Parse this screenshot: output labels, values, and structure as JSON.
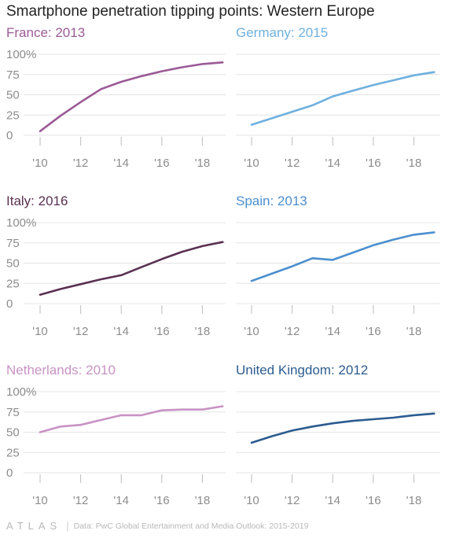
{
  "title": "Smartphone penetration tipping points: Western Europe",
  "footer": {
    "logo": "ATLAS",
    "source": "Data: PwC Global Entertainment and Media Outlook: 2015-2019"
  },
  "y_ticks": [
    "100%",
    "75",
    "50",
    "25",
    "0"
  ],
  "x_ticks": [
    "'10",
    "'12",
    "'14",
    "'16",
    "'18"
  ],
  "chart_data": [
    {
      "type": "line",
      "title": "France: 2013",
      "color": "#9b5a96",
      "x": [
        2010,
        2011,
        2012,
        2013,
        2014,
        2015,
        2016,
        2017,
        2018,
        2019
      ],
      "values": [
        5,
        24,
        41,
        57,
        66,
        73,
        79,
        84,
        88,
        90
      ],
      "ylim": [
        0,
        100
      ]
    },
    {
      "type": "line",
      "title": "Germany: 2015",
      "color": "#6fb0de",
      "x": [
        2010,
        2011,
        2012,
        2013,
        2014,
        2015,
        2016,
        2017,
        2018,
        2019
      ],
      "values": [
        13,
        21,
        29,
        37,
        48,
        55,
        62,
        68,
        74,
        78
      ],
      "ylim": [
        0,
        100
      ]
    },
    {
      "type": "line",
      "title": "Italy: 2016",
      "color": "#5a3152",
      "x": [
        2010,
        2011,
        2012,
        2013,
        2014,
        2015,
        2016,
        2017,
        2018,
        2019
      ],
      "values": [
        11,
        18,
        24,
        30,
        35,
        45,
        55,
        64,
        71,
        76
      ],
      "ylim": [
        0,
        100
      ]
    },
    {
      "type": "line",
      "title": "Spain: 2013",
      "color": "#4b8fcf",
      "x": [
        2010,
        2011,
        2012,
        2013,
        2014,
        2015,
        2016,
        2017,
        2018,
        2019
      ],
      "values": [
        28,
        37,
        46,
        56,
        54,
        63,
        72,
        79,
        85,
        88
      ],
      "ylim": [
        0,
        100
      ]
    },
    {
      "type": "line",
      "title": "Netherlands: 2010",
      "color": "#c893c4",
      "x": [
        2010,
        2011,
        2012,
        2013,
        2014,
        2015,
        2016,
        2017,
        2018,
        2019
      ],
      "values": [
        50,
        57,
        59,
        65,
        71,
        71,
        77,
        78,
        78,
        82
      ],
      "ylim": [
        0,
        100
      ]
    },
    {
      "type": "line",
      "title": "United Kingdom: 2012",
      "color": "#2c5c8f",
      "x": [
        2010,
        2011,
        2012,
        2013,
        2014,
        2015,
        2016,
        2017,
        2018,
        2019
      ],
      "values": [
        37,
        45,
        52,
        57,
        61,
        64,
        66,
        68,
        71,
        73
      ],
      "ylim": [
        0,
        100
      ]
    }
  ]
}
